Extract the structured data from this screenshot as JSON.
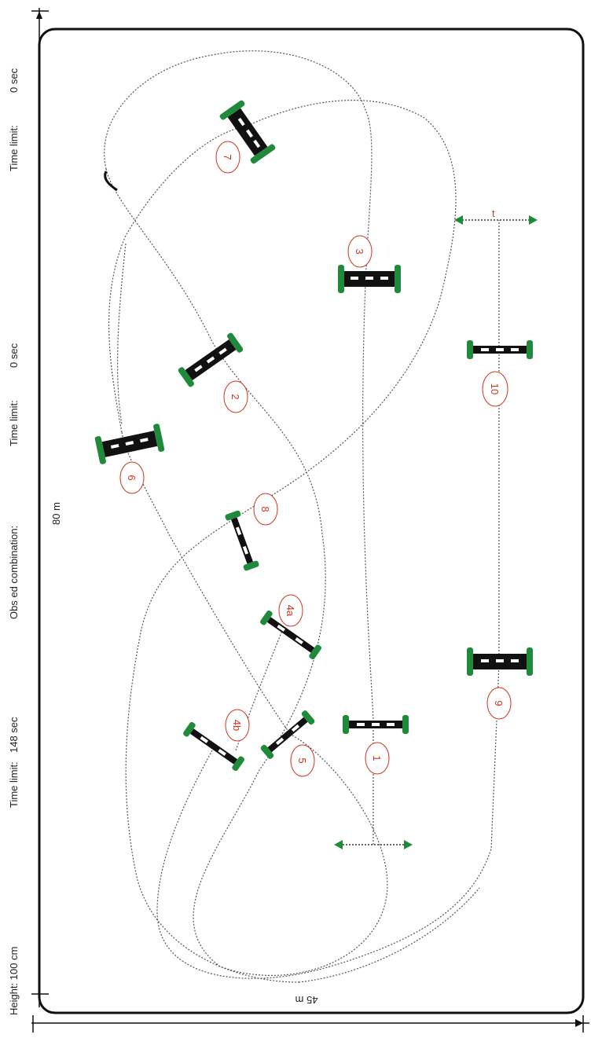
{
  "labels": {
    "height": "Height: 100 cm",
    "time_limit_1": "Time limit:",
    "time_value_1": "148 sec",
    "obstacle_label": "Obs ed combination:",
    "time_limit_2": "Time limit:",
    "time_value_2": "0 sec",
    "time_limit_3": "Time limit:",
    "time_value_3": "0 sec",
    "length": "80 m",
    "width": "45 m"
  },
  "obstacles": {
    "o1": "1",
    "o2": "2",
    "o3": "3",
    "o4a": "4a",
    "o4b": "4b",
    "o5": "5",
    "o6": "6",
    "o7": "7",
    "o8": "8",
    "o9": "9",
    "o10": "10",
    "o_end": "t"
  },
  "colors": {
    "route": "#555555",
    "numbers": "#d0341c",
    "wings": "#1f8a3a",
    "poles": "#111111"
  }
}
